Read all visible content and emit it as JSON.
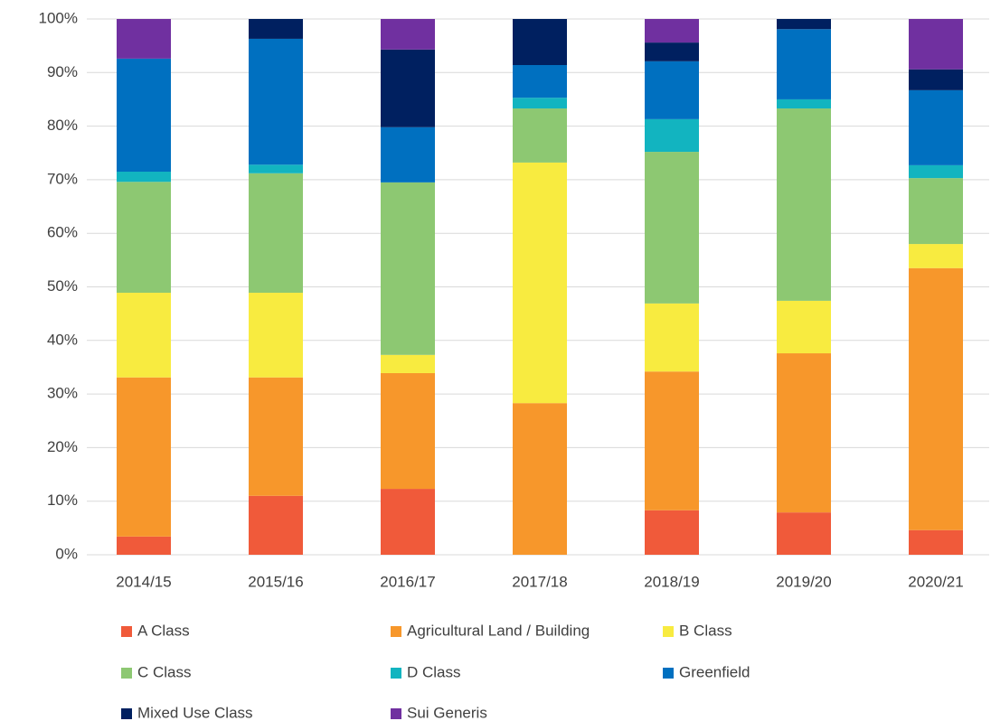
{
  "chart_data": {
    "type": "stacked_bar_100",
    "categories": [
      "2014/15",
      "2015/16",
      "2016/17",
      "2017/18",
      "2018/19",
      "2019/20",
      "2020/21"
    ],
    "series": [
      {
        "name": "A Class",
        "color": "#f05a3a",
        "values": [
          3.4,
          11.0,
          12.3,
          0,
          8.3,
          7.9,
          4.6
        ]
      },
      {
        "name": "Agricultural Land / Building",
        "color": "#f7972b",
        "values": [
          29.7,
          22.1,
          21.6,
          28.3,
          25.9,
          29.7,
          48.9
        ]
      },
      {
        "name": "B Class",
        "color": "#f8eb40",
        "values": [
          15.8,
          15.8,
          3.4,
          44.9,
          12.7,
          9.8,
          4.5
        ]
      },
      {
        "name": "C Class",
        "color": "#8dc872",
        "values": [
          20.7,
          22.3,
          32.2,
          10.1,
          28.3,
          35.9,
          12.3
        ]
      },
      {
        "name": "D Class",
        "color": "#12b4c0",
        "values": [
          1.9,
          1.6,
          0,
          2.0,
          6.1,
          1.7,
          2.4
        ]
      },
      {
        "name": "Greenfield",
        "color": "#0070c0",
        "values": [
          21.1,
          23.5,
          10.3,
          6.1,
          10.8,
          13.1,
          14.0
        ]
      },
      {
        "name": "Mixed Use Class",
        "color": "#002060",
        "values": [
          0,
          3.7,
          14.5,
          8.6,
          3.5,
          1.9,
          3.9
        ]
      },
      {
        "name": "Sui Generis",
        "color": "#7030a0",
        "values": [
          7.4,
          0,
          5.7,
          0,
          4.4,
          0,
          9.4
        ]
      }
    ],
    "ylim": [
      0,
      100
    ],
    "yticks": [
      {
        "value": 0,
        "label": "0%"
      },
      {
        "value": 10,
        "label": "10%"
      },
      {
        "value": 20,
        "label": "20%"
      },
      {
        "value": 30,
        "label": "30%"
      },
      {
        "value": 40,
        "label": "40%"
      },
      {
        "value": 50,
        "label": "50%"
      },
      {
        "value": 60,
        "label": "60%"
      },
      {
        "value": 70,
        "label": "70%"
      },
      {
        "value": 80,
        "label": "80%"
      },
      {
        "value": 90,
        "label": "90%"
      },
      {
        "value": 100,
        "label": "100%"
      }
    ],
    "grid": true,
    "legend": "bottom"
  }
}
